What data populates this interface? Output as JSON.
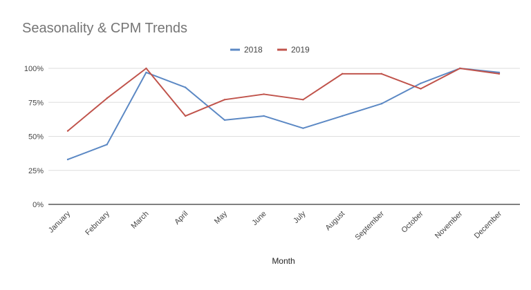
{
  "chart_data": {
    "type": "line",
    "title": "Seasonality & CPM Trends",
    "xlabel": "Month",
    "ylabel": "",
    "categories": [
      "January",
      "February",
      "March",
      "April",
      "May",
      "June",
      "July",
      "August",
      "September",
      "October",
      "November",
      "December"
    ],
    "yticks": [
      "0%",
      "25%",
      "50%",
      "75%",
      "100%"
    ],
    "ylim": [
      0,
      100
    ],
    "grid": true,
    "legend_position": "top",
    "series": [
      {
        "name": "2018",
        "color": "#5b88c4",
        "values": [
          33,
          44,
          97,
          86,
          62,
          65,
          56,
          65,
          74,
          89,
          100,
          97
        ]
      },
      {
        "name": "2019",
        "color": "#c0534b",
        "values": [
          54,
          78,
          100,
          65,
          77,
          81,
          77,
          96,
          96,
          85,
          100,
          96
        ]
      }
    ]
  }
}
